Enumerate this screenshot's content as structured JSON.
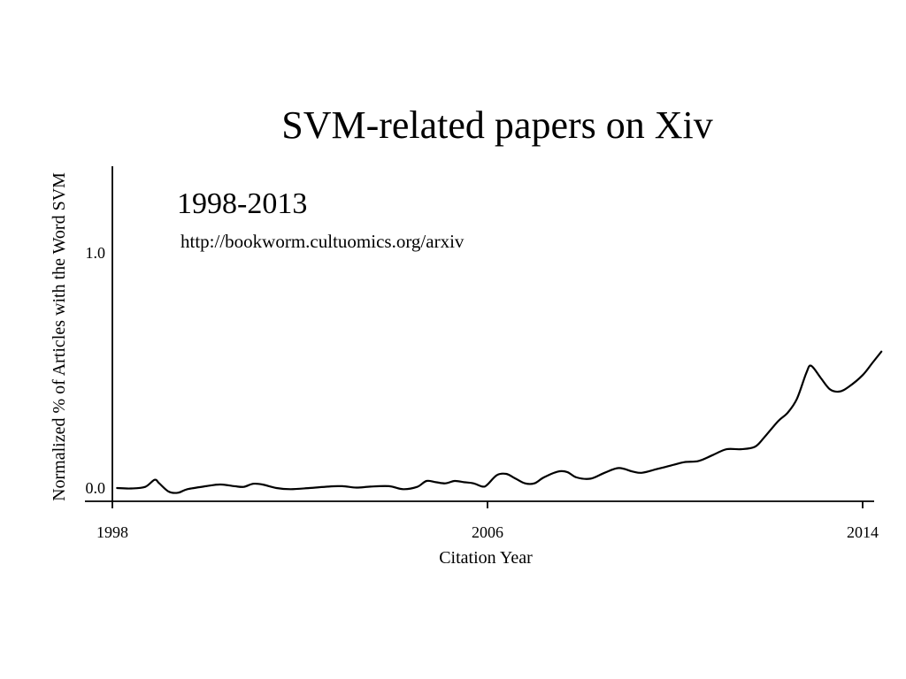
{
  "chart_data": {
    "type": "line",
    "title": "SVM-related papers on Xiv",
    "subtitle": "1998-2013",
    "annotation": "http://bookworm.cultuomics.org/arxiv",
    "xlabel": "Citation Year",
    "ylabel": "Normalized % of Articles with the Word SVM",
    "xlim": [
      1998,
      2014
    ],
    "ylim": [
      0.0,
      1.0
    ],
    "x_ticks": [
      1998,
      2006,
      2014
    ],
    "x_tick_labels": [
      "1998",
      "2006",
      "2014"
    ],
    "y_ticks": [
      0.0,
      1.0
    ],
    "y_tick_labels": [
      "0.0",
      "1.0"
    ],
    "grid": false,
    "series": [
      {
        "values": [
          [
            1998.1,
            0.0
          ],
          [
            1998.4,
            -0.002
          ],
          [
            1998.7,
            0.005
          ],
          [
            1998.9,
            0.035
          ],
          [
            1999.0,
            0.02
          ],
          [
            1999.2,
            -0.015
          ],
          [
            1999.4,
            -0.02
          ],
          [
            1999.6,
            -0.005
          ],
          [
            2000.0,
            0.008
          ],
          [
            2000.3,
            0.015
          ],
          [
            2000.6,
            0.008
          ],
          [
            2000.8,
            0.005
          ],
          [
            2001.0,
            0.018
          ],
          [
            2001.2,
            0.015
          ],
          [
            2001.5,
            0.0
          ],
          [
            2001.8,
            -0.005
          ],
          [
            2002.2,
            0.0
          ],
          [
            2002.6,
            0.006
          ],
          [
            2002.9,
            0.008
          ],
          [
            2003.2,
            0.002
          ],
          [
            2003.5,
            0.006
          ],
          [
            2003.9,
            0.008
          ],
          [
            2004.2,
            -0.005
          ],
          [
            2004.5,
            0.005
          ],
          [
            2004.7,
            0.03
          ],
          [
            2004.9,
            0.025
          ],
          [
            2005.1,
            0.02
          ],
          [
            2005.3,
            0.03
          ],
          [
            2005.5,
            0.025
          ],
          [
            2005.7,
            0.02
          ],
          [
            2005.9,
            0.006
          ],
          [
            2006.0,
            0.015
          ],
          [
            2006.2,
            0.055
          ],
          [
            2006.4,
            0.06
          ],
          [
            2006.6,
            0.04
          ],
          [
            2006.8,
            0.02
          ],
          [
            2007.0,
            0.02
          ],
          [
            2007.2,
            0.045
          ],
          [
            2007.5,
            0.07
          ],
          [
            2007.7,
            0.068
          ],
          [
            2007.9,
            0.045
          ],
          [
            2008.2,
            0.04
          ],
          [
            2008.5,
            0.065
          ],
          [
            2008.8,
            0.085
          ],
          [
            2009.1,
            0.07
          ],
          [
            2009.3,
            0.065
          ],
          [
            2009.6,
            0.08
          ],
          [
            2009.9,
            0.095
          ],
          [
            2010.2,
            0.11
          ],
          [
            2010.5,
            0.115
          ],
          [
            2010.8,
            0.14
          ],
          [
            2011.1,
            0.165
          ],
          [
            2011.4,
            0.165
          ],
          [
            2011.7,
            0.175
          ],
          [
            2011.9,
            0.215
          ],
          [
            2012.2,
            0.285
          ],
          [
            2012.4,
            0.32
          ],
          [
            2012.6,
            0.38
          ],
          [
            2012.8,
            0.49
          ],
          [
            2012.9,
            0.52
          ],
          [
            2013.1,
            0.47
          ],
          [
            2013.3,
            0.42
          ],
          [
            2013.5,
            0.41
          ],
          [
            2013.7,
            0.43
          ],
          [
            2014.0,
            0.48
          ],
          [
            2014.2,
            0.53
          ],
          [
            2014.4,
            0.58
          ]
        ]
      }
    ]
  }
}
